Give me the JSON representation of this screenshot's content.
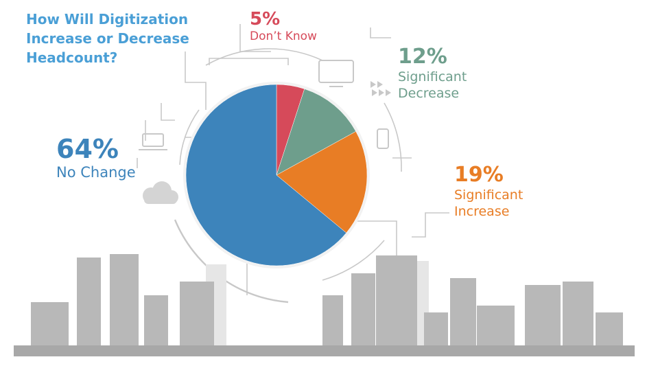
{
  "title_lines": [
    "How Will Digitization",
    "Increase or Decrease",
    "Headcount?"
  ],
  "colors": {
    "title": "#4a9fd6",
    "dont_know": "#d64a5a",
    "significant_decrease": "#6e9e8c",
    "significant_increase": "#e87d25",
    "no_change": "#3d84bb",
    "city": "#b8b8b8",
    "lines": "#c8c8c8"
  },
  "chart_data": {
    "type": "pie",
    "title": "How Will Digitization Increase or Decrease Headcount?",
    "slices": [
      {
        "label": "Don't Know",
        "value": 5,
        "display": "5%",
        "label_lines": [
          "Don’t Know"
        ],
        "color": "#d64a5a"
      },
      {
        "label": "Significant Decrease",
        "value": 12,
        "display": "12%",
        "label_lines": [
          "Significant",
          "Decrease"
        ],
        "color": "#6e9e8c"
      },
      {
        "label": "Significant Increase",
        "value": 19,
        "display": "19%",
        "label_lines": [
          "Significant",
          "Increase"
        ],
        "color": "#e87d25"
      },
      {
        "label": "No Change",
        "value": 64,
        "display": "64%",
        "label_lines": [
          "No Change"
        ],
        "color": "#3d84bb"
      }
    ],
    "start": "12 o'clock, clockwise"
  }
}
